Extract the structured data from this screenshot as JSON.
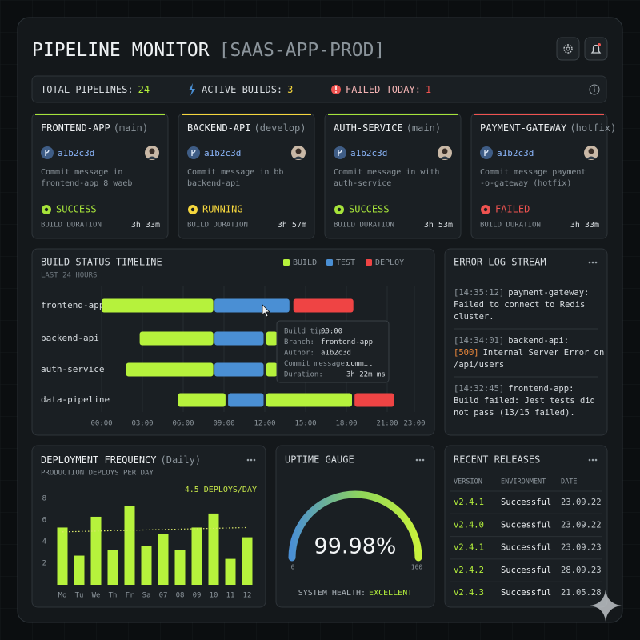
{
  "header": {
    "title": "PIPELINE MONITOR",
    "subtitle": "[SAAS-APP-PROD]"
  },
  "stats": [
    {
      "label": "TOTAL PIPELINES:",
      "value": "24",
      "color": "#b6f23c"
    },
    {
      "label": "ACTIVE BUILDS:",
      "value": "3",
      "color": "#f5d63d"
    },
    {
      "label": "FAILED TODAY:",
      "value": "1",
      "color": "#ef5350"
    }
  ],
  "pipelines": [
    {
      "name": "FRONTEND-APP",
      "branch": "(main)",
      "commit": "a1b2c3d",
      "message": [
        "Commit message in",
        "frontend-app 8 waeb"
      ],
      "status": "SUCCESS",
      "duration_label": "BUILD DURATION",
      "duration": "3h 33m",
      "color": "#a6e33a"
    },
    {
      "name": "BACKEND-API",
      "branch": "(develop)",
      "commit": "a1b2c3d",
      "message": [
        "Commit message in bb",
        "backend-api"
      ],
      "status": "RUNNING",
      "duration_label": "BUILD DURATION",
      "duration": "3h 57m",
      "color": "#f5d63d"
    },
    {
      "name": "AUTH-SERVICE",
      "branch": "(main)",
      "commit": "a1b2c3d",
      "message": [
        "Commit message in with",
        "auth-service"
      ],
      "status": "SUCCESS",
      "duration_label": "BUILD DURATION",
      "duration": "3h 53m",
      "color": "#a6e33a"
    },
    {
      "name": "PAYMENT-GATEWAY",
      "branch": "(hotfix)",
      "commit": "a1b2c3d",
      "message": [
        "Commit message payment",
        "-o-gateway (hotfix)"
      ],
      "status": "FAILED",
      "duration_label": "BUILD DURATION",
      "duration": "3h 33m",
      "color": "#ef5350"
    }
  ],
  "timeline": {
    "type": "gantt",
    "title": "BUILD STATUS TIMELINE",
    "subtitle": "LAST 24 HOURS",
    "categories": [
      "frontend-app",
      "backend-api",
      "auth-service",
      "data-pipeline"
    ],
    "series": [
      {
        "name": "BUILD",
        "color": "#b6f23c",
        "values": [
          [
            [
              0,
              8.3
            ],
            [
              12.1,
              13
            ]
          ],
          [
            [
              2.8,
              8.3
            ],
            [
              12.1,
              13
            ]
          ],
          [
            [
              1.8,
              8.3
            ],
            [
              12.1,
              13
            ]
          ],
          [
            [
              5.6,
              9.2
            ],
            [
              12.1,
              18.5
            ]
          ]
        ]
      },
      {
        "name": "TEST",
        "color": "#4a8fd4",
        "values": [
          [
            [
              8.3,
              13.9
            ]
          ],
          [
            [
              8.3,
              12
            ]
          ],
          [
            [
              8.3,
              12
            ]
          ],
          [
            [
              9.3,
              12
            ]
          ]
        ]
      },
      {
        "name": "DEPLOY",
        "color": "#ef4444",
        "values": [
          [
            [
              14.1,
              18.6
            ]
          ],
          [],
          [],
          [
            [
              18.6,
              21.6
            ]
          ]
        ]
      }
    ],
    "xlim": [
      0,
      24
    ],
    "xticks": [
      {
        "value": 0,
        "label": "00:00"
      },
      {
        "value": 3,
        "label": "03:00"
      },
      {
        "value": 6,
        "label": "06:00"
      },
      {
        "value": 9,
        "label": "09:00"
      },
      {
        "value": 12,
        "label": "12:00"
      },
      {
        "value": 15,
        "label": "15:00"
      },
      {
        "value": 18,
        "label": "18:00"
      },
      {
        "value": 21,
        "label": "21:00"
      },
      {
        "value": 23,
        "label": "23:00"
      }
    ],
    "grid": true,
    "tooltip": [
      {
        "label": "Build tip:",
        "value": "00:00"
      },
      {
        "label": "Branch:",
        "value": "frontend-app"
      },
      {
        "label": "Author:",
        "value": "a1b2c3d"
      },
      {
        "label": "Commit message:",
        "value": "commit"
      },
      {
        "label": "Duration:",
        "value": "3h 22m ms"
      }
    ]
  },
  "error_log": {
    "title": "ERROR LOG STREAM",
    "entries": [
      {
        "time": "[14:35:12]",
        "source": "payment-gateway:",
        "message": [
          "Failed to connect to Redis",
          "cluster."
        ]
      },
      {
        "time": "[14:34:01]",
        "source": "backend-api:",
        "code": "[500]",
        "message": [
          "Internal Server Error on",
          "/api/users"
        ]
      },
      {
        "time": "[14:32:45]",
        "source": "frontend-app:",
        "message": [
          "Build failed: Jest tests did",
          "not pass (13/15 failed)."
        ]
      }
    ]
  },
  "deployment": {
    "type": "bar",
    "title": "DEPLOYMENT FREQUENCY",
    "title_suffix": "(Daily)",
    "subtitle": "PRODUCTION DEPLOYS PER DAY",
    "annotation": "4.5 DEPLOYS/DAY",
    "categories": [
      "Mo",
      "Tu",
      "We",
      "Th",
      "Fr",
      "Sa",
      "07",
      "08",
      "09",
      "10",
      "11",
      "12"
    ],
    "values": [
      5.3,
      2.7,
      6.3,
      3.2,
      7.3,
      3.6,
      4.7,
      3.2,
      5.3,
      6.6,
      2.4,
      4.4
    ],
    "trend_values": [
      4.9,
      5.3
    ],
    "color": "#b6f23c",
    "ylim": [
      0,
      8
    ],
    "yticks": [
      2,
      4,
      6,
      8
    ]
  },
  "gauge": {
    "type": "gauge",
    "title": "UPTIME GAUGE",
    "value": 99.98,
    "value_label": "99.98%",
    "scale": [
      0,
      100
    ],
    "health_label": "SYSTEM HEALTH:",
    "health_value": "EXCELLENT"
  },
  "releases": {
    "title": "RECENT RELEASES",
    "headers": [
      "VERSION",
      "ENVIRONMENT",
      "DATE"
    ],
    "rows": [
      [
        "v2.4.1",
        "Successful",
        "23.09.22"
      ],
      [
        "v2.4.0",
        "Successful",
        "23.09.22"
      ],
      [
        "v2.4.1",
        "Successful",
        "23.09.23"
      ],
      [
        "v2.4.2",
        "Successful",
        "28.09.23"
      ],
      [
        "v2.4.3",
        "Successful",
        "21.05.28"
      ]
    ]
  }
}
